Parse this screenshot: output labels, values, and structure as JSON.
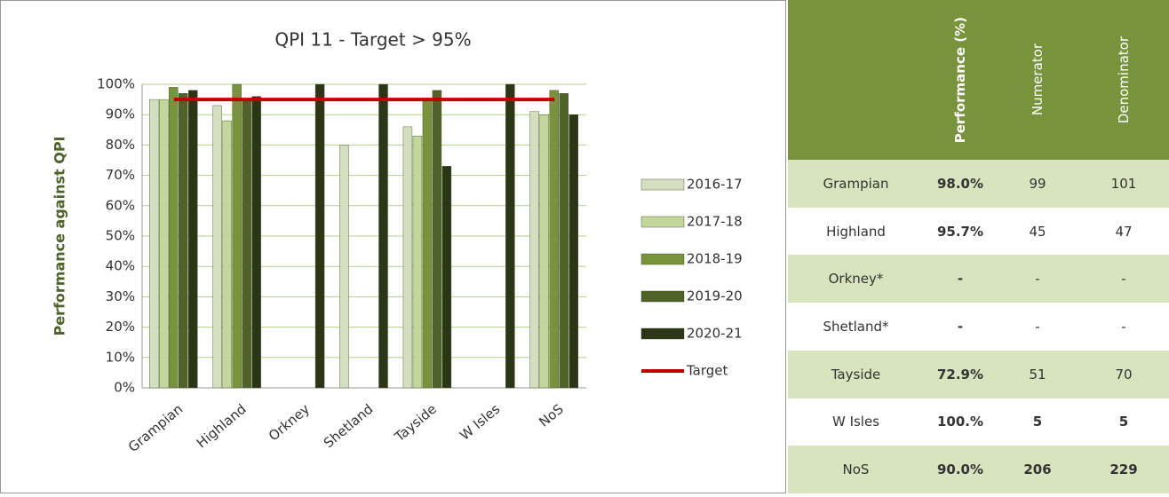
{
  "chart_data": {
    "type": "bar",
    "title": "QPI 11 -  Target > 95%",
    "y_label": "Performance against QPI",
    "categories": [
      "Grampian",
      "Highland",
      "Orkney",
      "Shetland",
      "Tayside",
      "W Isles",
      "NoS"
    ],
    "series": [
      {
        "name": "2016-17",
        "color": "#d4dfc0",
        "values": [
          95,
          93,
          null,
          80,
          86,
          null,
          91
        ]
      },
      {
        "name": "2017-18",
        "color": "#c3d69b",
        "values": [
          95,
          88,
          null,
          null,
          83,
          null,
          90
        ]
      },
      {
        "name": "2018-19",
        "color": "#77933c",
        "values": [
          99,
          100,
          null,
          null,
          95,
          null,
          98
        ]
      },
      {
        "name": "2019-20",
        "color": "#4f6228",
        "values": [
          97,
          95,
          null,
          null,
          98,
          null,
          97
        ]
      },
      {
        "name": "2020-21",
        "color": "#2a3615",
        "values": [
          98,
          96,
          100,
          100,
          73,
          100,
          90
        ]
      },
      {
        "name": "Target",
        "color": "#c00000",
        "line": true,
        "values": [
          95,
          95,
          95,
          95,
          95,
          95,
          95
        ]
      }
    ],
    "ylim": [
      0,
      100
    ],
    "yticks": [
      {
        "value": 0,
        "label": "0%"
      },
      {
        "value": 10,
        "label": "10%"
      },
      {
        "value": 20,
        "label": "20%"
      },
      {
        "value": 30,
        "label": "30%"
      },
      {
        "value": 40,
        "label": "40%"
      },
      {
        "value": 50,
        "label": "50%"
      },
      {
        "value": 60,
        "label": "60%"
      },
      {
        "value": 70,
        "label": "70%"
      },
      {
        "value": 80,
        "label": "80%"
      },
      {
        "value": 90,
        "label": "90%"
      },
      {
        "value": 100,
        "label": "100%"
      }
    ],
    "grid": true,
    "legend": "right"
  },
  "table": {
    "header": [
      "Performance (%)",
      "Numerator",
      "Denominator"
    ],
    "rows": [
      [
        "Grampian",
        "98.0%",
        99,
        101
      ],
      [
        "Highland",
        "95.7%",
        45,
        47
      ],
      [
        "Orkney*",
        "-",
        "-",
        "-"
      ],
      [
        "Shetland*",
        "-",
        "-",
        "-"
      ],
      [
        "Tayside",
        "72.9%",
        51,
        70
      ],
      [
        "W Isles",
        "100.%",
        5,
        5
      ],
      [
        "NoS",
        "90.0%",
        206,
        229
      ]
    ]
  }
}
